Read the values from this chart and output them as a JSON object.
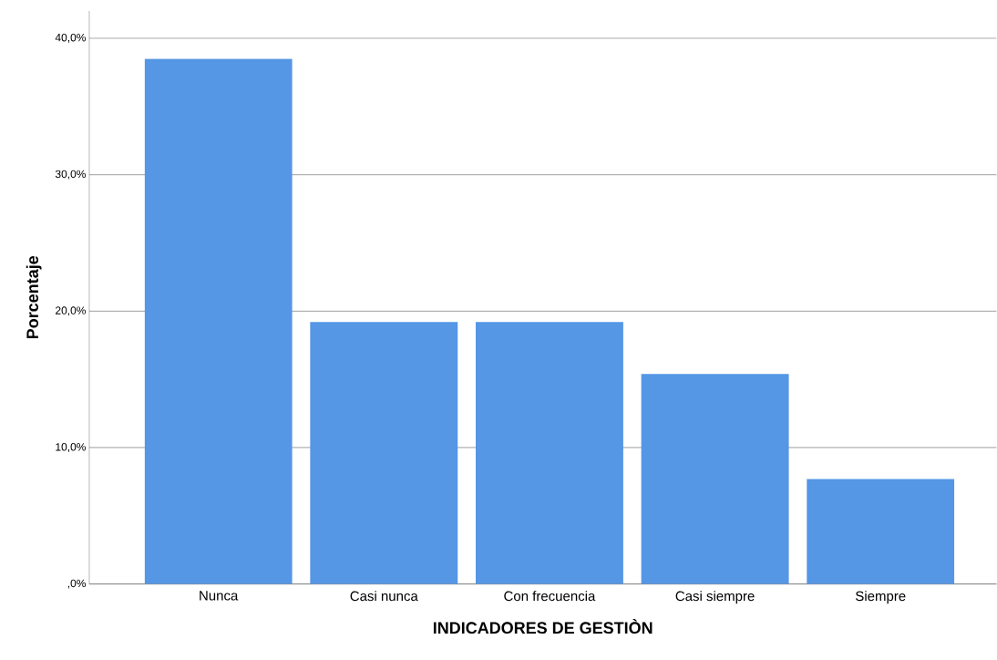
{
  "chart_data": {
    "type": "bar",
    "xlabel": "INDICADORES DE GESTIÒN",
    "ylabel": "Porcentaje",
    "categories": [
      "Nunca",
      "Casi nunca",
      "Con frecuencia",
      "Casi siempre",
      "Siempre"
    ],
    "values": [
      38.5,
      19.2,
      19.2,
      15.4,
      7.7
    ],
    "color": "#5596e5",
    "ylim": [
      0,
      42
    ],
    "yticks": [
      {
        "value": 0,
        "label": ",0%"
      },
      {
        "value": 10,
        "label": "10,0%"
      },
      {
        "value": 20,
        "label": "20,0%"
      },
      {
        "value": 30,
        "label": "30,0%"
      },
      {
        "value": 40,
        "label": "40,0%"
      }
    ],
    "grid": "y"
  }
}
